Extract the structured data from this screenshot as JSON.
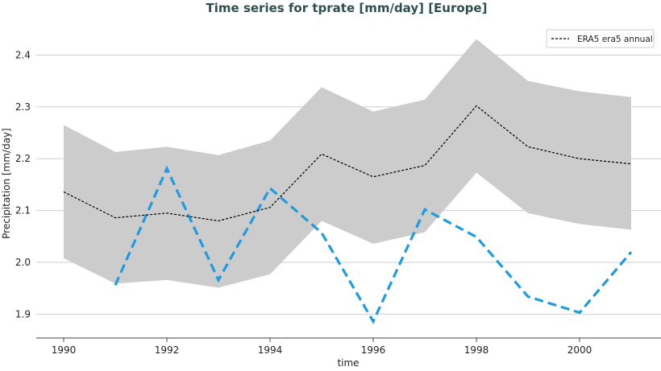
{
  "chart_data": {
    "type": "line",
    "title": "Time series for tprate [mm/day] [Europe]",
    "xlabel": "time",
    "ylabel": "Precipitation [mm/day]",
    "xlim": [
      1989.5,
      2001.4
    ],
    "ylim": [
      1.86,
      2.45
    ],
    "xticks": [
      1990,
      1992,
      1994,
      1996,
      1998,
      2000
    ],
    "yticks": [
      1.9,
      2.0,
      2.1,
      2.2,
      2.3,
      2.4
    ],
    "grid": "horizontal",
    "legend_placement": "top-right",
    "x": [
      1990,
      1991,
      1992,
      1993,
      1994,
      1995,
      1996,
      1997,
      1998,
      1999,
      2000,
      2001
    ],
    "series": [
      {
        "name": "ERA5 era5 annual",
        "color": "#000000",
        "style": "dashed",
        "values": [
          2.136,
          2.086,
          2.095,
          2.08,
          2.106,
          2.209,
          2.165,
          2.187,
          2.302,
          2.223,
          2.2,
          2.19
        ]
      },
      {
        "color": "#1f9be0",
        "style": "dashed-thick",
        "x": [
          1991,
          1992,
          1993,
          1994,
          1995,
          1996,
          1997,
          1998,
          1999,
          2000,
          2001
        ],
        "values": [
          1.956,
          2.181,
          1.966,
          2.143,
          2.057,
          1.886,
          2.102,
          2.049,
          1.934,
          1.903,
          2.02
        ]
      }
    ],
    "band": {
      "color": "#cccccc",
      "upper": [
        2.265,
        2.213,
        2.223,
        2.207,
        2.235,
        2.338,
        2.291,
        2.314,
        2.431,
        2.35,
        2.33,
        2.319
      ],
      "lower": [
        2.008,
        1.959,
        1.966,
        1.951,
        1.977,
        2.08,
        2.036,
        2.058,
        2.173,
        2.095,
        2.074,
        2.063
      ]
    }
  }
}
